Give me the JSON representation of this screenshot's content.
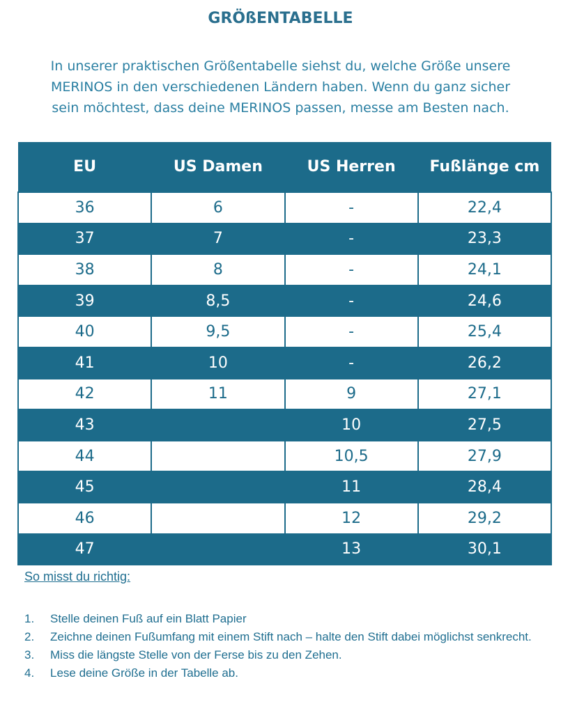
{
  "title": "GRÖßENTABELLE",
  "intro": {
    "line1": "In unserer praktischen Größentabelle siehst du, welche Größe unsere",
    "line2": "MERINOS in den verschiedenen Ländern haben. Wenn du ganz sicher",
    "line3": "sein möchtest, dass deine MERINOS passen, messe am Besten nach."
  },
  "table": {
    "headers": [
      "EU",
      "US Damen",
      "US Herren",
      "Fußlänge cm"
    ],
    "rows": [
      [
        "36",
        "6",
        "-",
        "22,4"
      ],
      [
        "37",
        "7",
        "-",
        "23,3"
      ],
      [
        "38",
        "8",
        "-",
        "24,1"
      ],
      [
        "39",
        "8,5",
        "-",
        "24,6"
      ],
      [
        "40",
        "9,5",
        "-",
        "25,4"
      ],
      [
        "41",
        "10",
        "-",
        "26,2"
      ],
      [
        "42",
        "11",
        "9",
        "27,1"
      ],
      [
        "43",
        "",
        "10",
        "27,5"
      ],
      [
        "44",
        "",
        "10,5",
        "27,9"
      ],
      [
        "45",
        "",
        "11",
        "28,4"
      ],
      [
        "46",
        "",
        "12",
        "29,2"
      ],
      [
        "47",
        "",
        "13",
        "30,1"
      ]
    ]
  },
  "howto": {
    "title": "So misst du richtig:",
    "steps": [
      {
        "num": "1.",
        "text": "Stelle deinen Fuß auf ein Blatt Papier"
      },
      {
        "num": "2.",
        "text": "Zeichne deinen Fußumfang mit einem Stift nach – halte den Stift dabei möglichst senkrecht."
      },
      {
        "num": "3.",
        "text": "Miss die längste Stelle von der Ferse bis zu den Zehen."
      },
      {
        "num": "4.",
        "text": "Lese deine Größe in der Tabelle ab."
      }
    ]
  },
  "colors": {
    "primary": "#1c6b8a",
    "text": "#2a7fa2",
    "background": "#ffffff"
  }
}
